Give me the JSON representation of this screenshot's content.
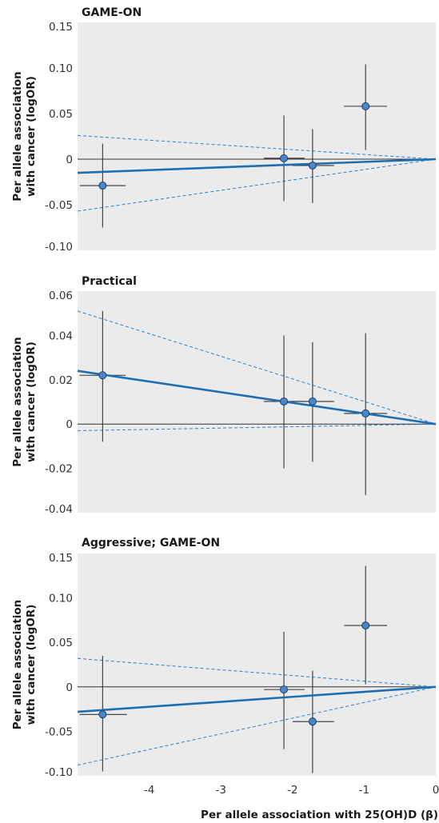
{
  "chart_data": [
    {
      "type": "scatter",
      "title": "GAME-ON",
      "ylabel": [
        "Per allele association",
        "with cancer (logOR)"
      ],
      "xlim": [
        -5,
        0
      ],
      "ylim": [
        -0.1,
        0.15
      ],
      "yticks": [
        0.15,
        0.1,
        0.05,
        0,
        -0.05,
        -0.1
      ],
      "ytick_labels": [
        "0.15",
        "0.10",
        "0.05",
        "0",
        "-0.05",
        "-0.10"
      ],
      "points": [
        {
          "x": -4.65,
          "y": -0.029,
          "xlo": -4.97,
          "xhi": -4.33,
          "ylo": -0.075,
          "yhi": 0.017
        },
        {
          "x": -2.12,
          "y": 0.001,
          "xlo": -2.4,
          "xhi": -1.83,
          "ylo": -0.046,
          "yhi": 0.048
        },
        {
          "x": -1.72,
          "y": -0.007,
          "xlo": -2.0,
          "xhi": -1.42,
          "ylo": -0.048,
          "yhi": 0.033
        },
        {
          "x": -0.98,
          "y": 0.058,
          "xlo": -1.28,
          "xhi": -0.68,
          "ylo": 0.01,
          "yhi": 0.104
        }
      ],
      "fit": {
        "slope": 0.003
      },
      "ci": {
        "upper_at_xmin": 0.026,
        "lower_at_xmin": -0.057
      }
    },
    {
      "type": "scatter",
      "title": "Practical",
      "ylabel": [
        "Per allele association",
        "with cancer (logOR)"
      ],
      "xlim": [
        -5,
        0
      ],
      "ylim": [
        -0.04,
        0.06
      ],
      "yticks": [
        0.06,
        0.04,
        0.02,
        0,
        -0.02,
        -0.04
      ],
      "ytick_labels": [
        "0.06",
        "0.04",
        "0.02",
        "0",
        "-0.02",
        "-0.04"
      ],
      "points": [
        {
          "x": -4.65,
          "y": 0.022,
          "xlo": -4.97,
          "xhi": -4.33,
          "ylo": -0.008,
          "yhi": 0.051
        },
        {
          "x": -2.12,
          "y": 0.0102,
          "xlo": -2.4,
          "xhi": -1.83,
          "ylo": -0.02,
          "yhi": 0.04
        },
        {
          "x": -1.72,
          "y": 0.0102,
          "xlo": -2.0,
          "xhi": -1.42,
          "ylo": -0.017,
          "yhi": 0.037
        },
        {
          "x": -0.98,
          "y": 0.0048,
          "xlo": -1.28,
          "xhi": -0.68,
          "ylo": -0.032,
          "yhi": 0.041
        }
      ],
      "fit": {
        "slope": -0.0048
      },
      "ci": {
        "upper_at_xmin": 0.051,
        "lower_at_xmin": -0.003
      }
    },
    {
      "type": "scatter",
      "title": "Aggressive; GAME-ON",
      "ylabel": [
        "Per allele association",
        "with cancer (logOR)"
      ],
      "xlabel": "Per allele association with 25(OH)D (β)",
      "xlim": [
        -5,
        0
      ],
      "ylim": [
        -0.1,
        0.15
      ],
      "yticks": [
        0.15,
        0.1,
        0.05,
        0,
        -0.05,
        -0.1
      ],
      "ytick_labels": [
        "0.15",
        "0.10",
        "0.05",
        "0",
        "-0.05",
        "-0.10"
      ],
      "xticks": [
        -4,
        -3,
        -2,
        -1,
        0
      ],
      "xtick_labels": [
        "-4",
        "-3",
        "-2",
        "-1",
        "0"
      ],
      "points": [
        {
          "x": -4.65,
          "y": -0.031,
          "xlo": -4.97,
          "xhi": -4.31,
          "ylo": -0.095,
          "yhi": 0.035
        },
        {
          "x": -2.12,
          "y": -0.003,
          "xlo": -2.4,
          "xhi": -1.83,
          "ylo": -0.07,
          "yhi": 0.062
        },
        {
          "x": -1.72,
          "y": -0.039,
          "xlo": -2.0,
          "xhi": -1.42,
          "ylo": -0.097,
          "yhi": 0.018
        },
        {
          "x": -0.98,
          "y": 0.069,
          "xlo": -1.28,
          "xhi": -0.68,
          "ylo": 0.003,
          "yhi": 0.136
        }
      ],
      "fit": {
        "slope": 0.0056
      },
      "ci": {
        "upper_at_xmin": 0.032,
        "lower_at_xmin": -0.088
      }
    }
  ],
  "colors": {
    "background": "#ebebeb",
    "fit_line": "#1f6fb0",
    "ci_line": "#2a7fd4",
    "point_fill": "#4a86c8",
    "point_stroke": "#1a3d66",
    "error_bar": "#333333",
    "zero_line": "#333333"
  }
}
